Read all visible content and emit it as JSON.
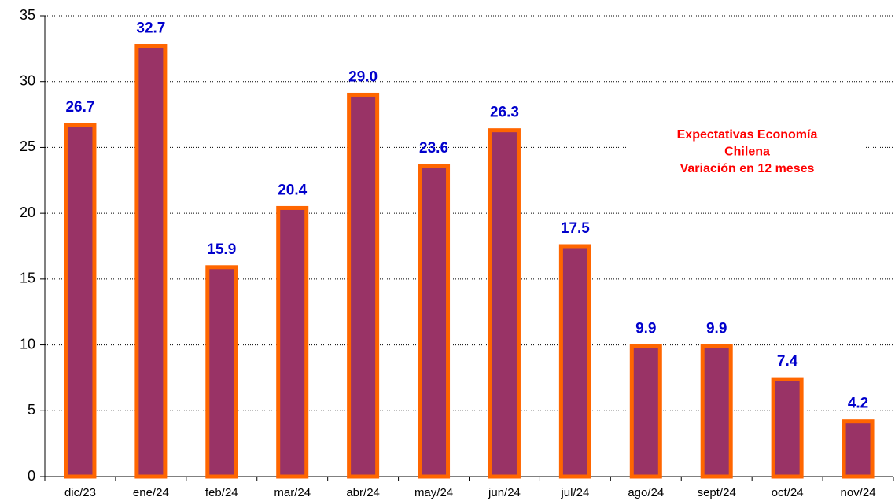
{
  "chart_data": {
    "type": "bar",
    "categories": [
      "dic/23",
      "ene/24",
      "feb/24",
      "mar/24",
      "abr/24",
      "may/24",
      "jun/24",
      "jul/24",
      "ago/24",
      "sept/24",
      "oct/24",
      "nov/24"
    ],
    "values": [
      26.7,
      32.7,
      15.9,
      20.4,
      29.0,
      23.6,
      26.3,
      17.5,
      9.9,
      9.9,
      7.4,
      4.2
    ],
    "value_labels": [
      "26.7",
      "32.7",
      "15.9",
      "20.4",
      "29.0",
      "23.6",
      "26.3",
      "17.5",
      "9.9",
      "9.9",
      "7.4",
      "4.2"
    ],
    "color": "#993366",
    "edge_color": "#ff6600",
    "label_color": "#0000cc",
    "annotation": [
      "Expectativas Economía",
      "Chilena",
      "Variación  en 12 meses"
    ],
    "annotation_color": "#ff0000",
    "ylim": [
      0,
      35
    ],
    "yticks": [
      0,
      5,
      10,
      15,
      20,
      25,
      30,
      35
    ],
    "grid": true
  }
}
